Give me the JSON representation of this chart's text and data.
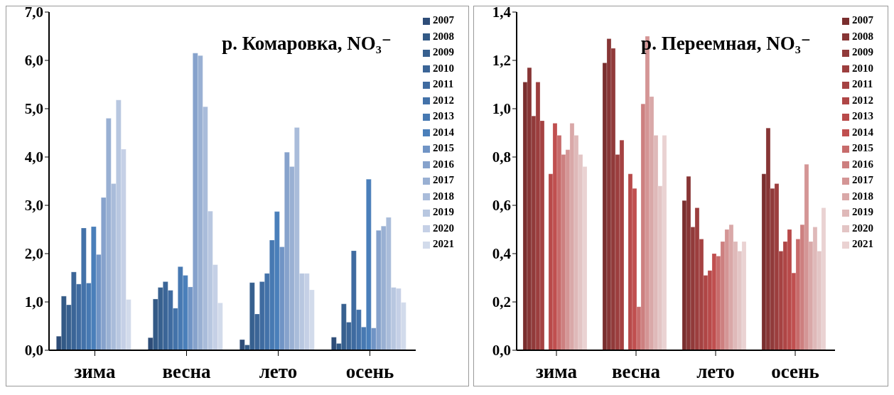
{
  "chart_data": [
    {
      "type": "bar",
      "title": "р. Комаровка, NO₃⁻",
      "categories": [
        "зима",
        "весна",
        "лето",
        "осень"
      ],
      "ylim": [
        0,
        7
      ],
      "yticks": [
        {
          "value": 0,
          "label": "0,0"
        },
        {
          "value": 1,
          "label": "1,0"
        },
        {
          "value": 2,
          "label": "2,0"
        },
        {
          "value": 3,
          "label": "3,0"
        },
        {
          "value": 4,
          "label": "4,0"
        },
        {
          "value": 5,
          "label": "5,0"
        },
        {
          "value": 6,
          "label": "6,0"
        },
        {
          "value": 7,
          "label": "7,0"
        }
      ],
      "legend": "right",
      "series": [
        {
          "name": "2007",
          "color": "#2e4d78",
          "values": [
            0.29,
            0.26,
            0.22,
            0.27
          ]
        },
        {
          "name": "2008",
          "color": "#335a86",
          "values": [
            1.12,
            1.06,
            0.11,
            0.14
          ]
        },
        {
          "name": "2009",
          "color": "#37608f",
          "values": [
            0.94,
            1.3,
            1.4,
            0.96
          ]
        },
        {
          "name": "2010",
          "color": "#3b6597",
          "values": [
            1.62,
            1.42,
            0.75,
            0.58
          ]
        },
        {
          "name": "2011",
          "color": "#3f6ba0",
          "values": [
            1.37,
            1.24,
            1.42,
            2.06
          ]
        },
        {
          "name": "2012",
          "color": "#4372a9",
          "values": [
            2.53,
            0.87,
            1.59,
            0.84
          ]
        },
        {
          "name": "2013",
          "color": "#4779b2",
          "values": [
            1.39,
            1.73,
            2.28,
            0.48
          ]
        },
        {
          "name": "2014",
          "color": "#4a7fba",
          "values": [
            2.56,
            1.55,
            2.87,
            3.54
          ]
        },
        {
          "name": "2015",
          "color": "#7094c5",
          "values": [
            1.98,
            1.31,
            2.14,
            0.46
          ]
        },
        {
          "name": "2016",
          "color": "#86a2cc",
          "values": [
            3.16,
            6.15,
            4.1,
            2.48
          ]
        },
        {
          "name": "2017",
          "color": "#99b0d3",
          "values": [
            4.8,
            6.1,
            3.8,
            2.57
          ]
        },
        {
          "name": "2018",
          "color": "#a9bcda",
          "values": [
            3.45,
            5.04,
            4.61,
            2.75
          ]
        },
        {
          "name": "2019",
          "color": "#b8c7e0",
          "values": [
            5.18,
            2.88,
            1.59,
            1.3
          ]
        },
        {
          "name": "2020",
          "color": "#c5d0e6",
          "values": [
            4.16,
            1.77,
            1.59,
            1.28
          ]
        },
        {
          "name": "2021",
          "color": "#d2dbeb",
          "values": [
            1.05,
            0.98,
            1.25,
            0.99
          ]
        }
      ]
    },
    {
      "type": "bar",
      "title": "р. Переемная, NO₃⁻",
      "categories": [
        "зима",
        "весна",
        "лето",
        "осень"
      ],
      "ylim": [
        0,
        1.4
      ],
      "yticks": [
        {
          "value": 0,
          "label": "0,0"
        },
        {
          "value": 0.2,
          "label": "0,2"
        },
        {
          "value": 0.4,
          "label": "0,4"
        },
        {
          "value": 0.6,
          "label": "0,6"
        },
        {
          "value": 0.8,
          "label": "0,8"
        },
        {
          "value": 1,
          "label": "1,0"
        },
        {
          "value": 1.2,
          "label": "1,2"
        },
        {
          "value": 1.4,
          "label": "1,4"
        }
      ],
      "legend": "right",
      "series": [
        {
          "name": "2007",
          "color": "#7a2e2e",
          "values": [
            1.11,
            1.19,
            0.62,
            0.73
          ]
        },
        {
          "name": "2008",
          "color": "#873535",
          "values": [
            1.17,
            1.29,
            0.72,
            0.92
          ]
        },
        {
          "name": "2009",
          "color": "#913a3a",
          "values": [
            0.97,
            1.25,
            0.51,
            0.67
          ]
        },
        {
          "name": "2010",
          "color": "#9c3e3e",
          "values": [
            1.11,
            0.81,
            0.59,
            0.69
          ]
        },
        {
          "name": "2011",
          "color": "#a54242",
          "values": [
            0.95,
            0.87,
            0.46,
            0.41
          ]
        },
        {
          "name": "2012",
          "color": "#af4646",
          "values": [
            null,
            null,
            0.31,
            0.45
          ]
        },
        {
          "name": "2013",
          "color": "#b84a4a",
          "values": [
            0.73,
            0.73,
            0.33,
            0.5
          ]
        },
        {
          "name": "2014",
          "color": "#c04f4f",
          "values": [
            0.94,
            0.67,
            0.4,
            0.32
          ]
        },
        {
          "name": "2015",
          "color": "#c76b6b",
          "values": [
            0.89,
            0.18,
            0.39,
            0.46
          ]
        },
        {
          "name": "2016",
          "color": "#cd7f7f",
          "values": [
            0.81,
            1.02,
            0.45,
            0.52
          ]
        },
        {
          "name": "2017",
          "color": "#d49595",
          "values": [
            0.83,
            1.3,
            0.5,
            0.77
          ]
        },
        {
          "name": "2018",
          "color": "#d9a8a8",
          "values": [
            0.94,
            1.05,
            0.52,
            0.45
          ]
        },
        {
          "name": "2019",
          "color": "#dfb9b9",
          "values": [
            0.89,
            0.89,
            0.45,
            0.51
          ]
        },
        {
          "name": "2020",
          "color": "#e3c5c5",
          "values": [
            0.81,
            0.68,
            0.41,
            0.41
          ]
        },
        {
          "name": "2021",
          "color": "#ead2d2",
          "values": [
            0.76,
            0.89,
            0.45,
            0.59
          ]
        }
      ]
    }
  ]
}
